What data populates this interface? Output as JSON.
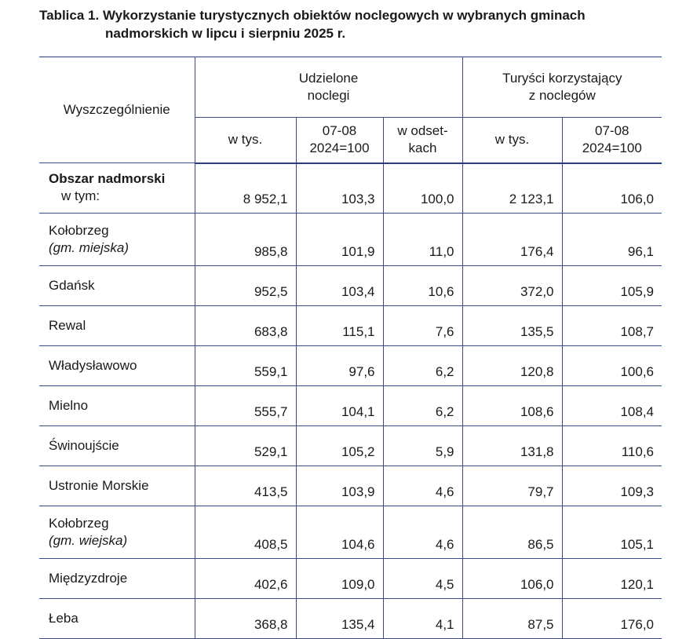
{
  "title": {
    "line1": "Tablica 1. Wykorzystanie turystycznych obiektów noclegowych w wybranych gminach",
    "line2": "nadmorskich w lipcu i sierpniu 2025 r."
  },
  "header": {
    "col0": "Wyszczególnienie",
    "group1": {
      "line1": "Udzielone",
      "line2": "noclegi"
    },
    "group2": {
      "line1": "Turyści korzystający",
      "line2": "z noclegów"
    },
    "sub": {
      "w_tys": "w tys.",
      "idx_line1": "07-08",
      "idx_line2": "2024=100",
      "odset_line1": "w odset-",
      "odset_line2": "kach"
    }
  },
  "rows": [
    {
      "name": "Obszar nadmorski",
      "sub": "w tym:",
      "v": [
        "8 952,1",
        "103,3",
        "100,0",
        "2 123,1",
        "106,0"
      ]
    },
    {
      "name": "Kołobrzeg",
      "italic": "(gm. miejska)",
      "v": [
        "985,8",
        "101,9",
        "11,0",
        "176,4",
        "96,1"
      ]
    },
    {
      "name": "Gdańsk",
      "v": [
        "952,5",
        "103,4",
        "10,6",
        "372,0",
        "105,9"
      ]
    },
    {
      "name": "Rewal",
      "v": [
        "683,8",
        "115,1",
        "7,6",
        "135,5",
        "108,7"
      ]
    },
    {
      "name": "Władysławowo",
      "v": [
        "559,1",
        "97,6",
        "6,2",
        "120,8",
        "100,6"
      ]
    },
    {
      "name": "Mielno",
      "v": [
        "555,7",
        "104,1",
        "6,2",
        "108,6",
        "108,4"
      ]
    },
    {
      "name": "Świnoujście",
      "v": [
        "529,1",
        "105,2",
        "5,9",
        "131,8",
        "110,6"
      ]
    },
    {
      "name": "Ustronie Morskie",
      "v": [
        "413,5",
        "103,9",
        "4,6",
        "79,7",
        "109,3"
      ]
    },
    {
      "name": "Kołobrzeg",
      "italic": "(gm. wiejska)",
      "v": [
        "408,5",
        "104,6",
        "4,6",
        "86,5",
        "105,1"
      ]
    },
    {
      "name": "Międzyzdroje",
      "v": [
        "402,6",
        "109,0",
        "4,5",
        "106,0",
        "120,1"
      ]
    },
    {
      "name": "Łeba",
      "v": [
        "368,8",
        "135,4",
        "4,1",
        "87,5",
        "176,0"
      ]
    }
  ]
}
